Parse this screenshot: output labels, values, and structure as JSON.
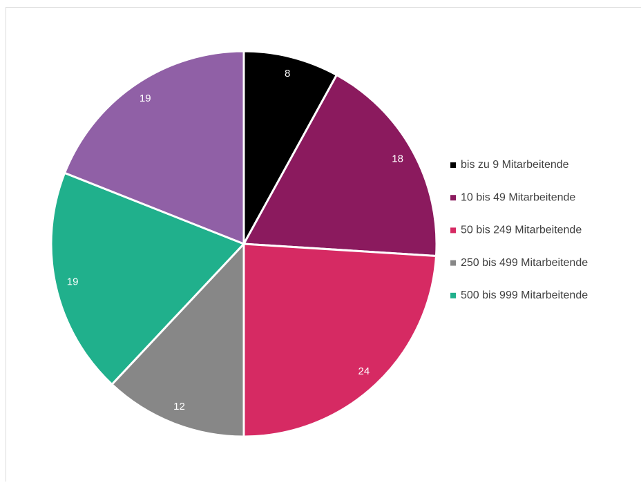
{
  "chart_data": {
    "type": "pie",
    "categories": [
      "bis zu 9 Mitarbeitende",
      "10 bis 49 Mitarbeitende",
      "50 bis 249 Mitarbeitende",
      "250 bis 499 Mitarbeitende",
      "500 bis 999 Mitarbeitende",
      null
    ],
    "values": [
      8,
      18,
      24,
      12,
      19,
      19
    ],
    "colors": [
      "#000000",
      "#8b1a5e",
      "#d62a63",
      "#878787",
      "#20b08c",
      "#9060a6"
    ],
    "legend": "right"
  }
}
